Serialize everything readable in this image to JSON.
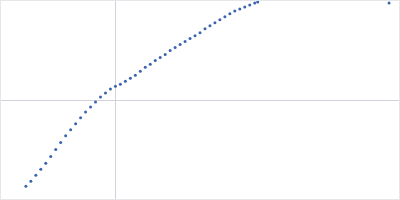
{
  "chart_data": {
    "type": "scatter",
    "x": [
      25,
      30,
      35,
      40,
      45,
      50,
      55,
      60,
      65,
      70,
      75,
      80,
      85,
      90,
      95,
      100,
      105,
      110,
      115,
      120,
      125,
      130,
      135,
      140,
      145,
      150,
      155,
      160,
      165,
      170,
      175,
      180,
      185,
      190,
      195,
      200,
      205,
      210,
      215,
      220,
      225,
      230,
      235,
      240,
      245,
      250,
      255,
      258,
      390
    ],
    "values": [
      13,
      18,
      24,
      30,
      36,
      43,
      50,
      57,
      64,
      70,
      76,
      82,
      88,
      93,
      98,
      103,
      107,
      111,
      114,
      116,
      119,
      122,
      125,
      129,
      133,
      136,
      140,
      143,
      146,
      150,
      153,
      156,
      159,
      162,
      165,
      168,
      172,
      175,
      178,
      181,
      184,
      187,
      190,
      192,
      194,
      196,
      198,
      199,
      198
    ],
    "color": "#3b64b0",
    "marker": "circle",
    "xlim": [
      0,
      400
    ],
    "ylim": [
      0,
      200
    ],
    "xticks": [
      115
    ],
    "yticks": [
      100
    ],
    "grid": true,
    "tick_labels": false
  }
}
